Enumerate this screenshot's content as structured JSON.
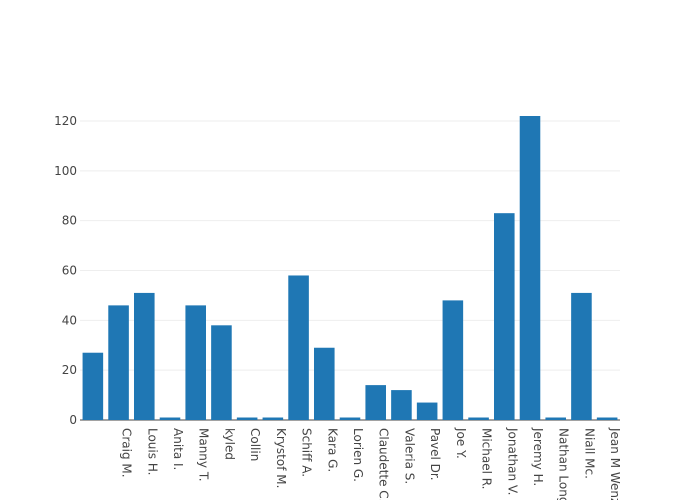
{
  "chart_data": {
    "type": "bar",
    "title": "",
    "xlabel": "",
    "ylabel": "",
    "ylim": [
      0,
      122
    ],
    "yticks": [
      0,
      20,
      40,
      60,
      80,
      100,
      120
    ],
    "grid": true,
    "bar_color": "#1f77b4",
    "categories": [
      "",
      "Craig M.",
      "Louis H.",
      "Anita I.",
      "Manny T.",
      "kyled",
      "Collin",
      "Krystof M.",
      "Schiff A.",
      "Kara G.",
      "Lorien G.",
      "Claudette C.",
      "Valeria S.",
      "Pavel Dr.",
      "Joe Y.",
      "Michael R.",
      "Jonathan V.",
      "Jeremy H.",
      "Nathan Long",
      "Niall Mc.",
      "Jean M Wenz"
    ],
    "values": [
      27,
      46,
      51,
      1,
      46,
      38,
      1,
      1,
      58,
      29,
      1,
      14,
      12,
      7,
      48,
      1,
      83,
      122,
      1,
      51,
      1
    ]
  }
}
